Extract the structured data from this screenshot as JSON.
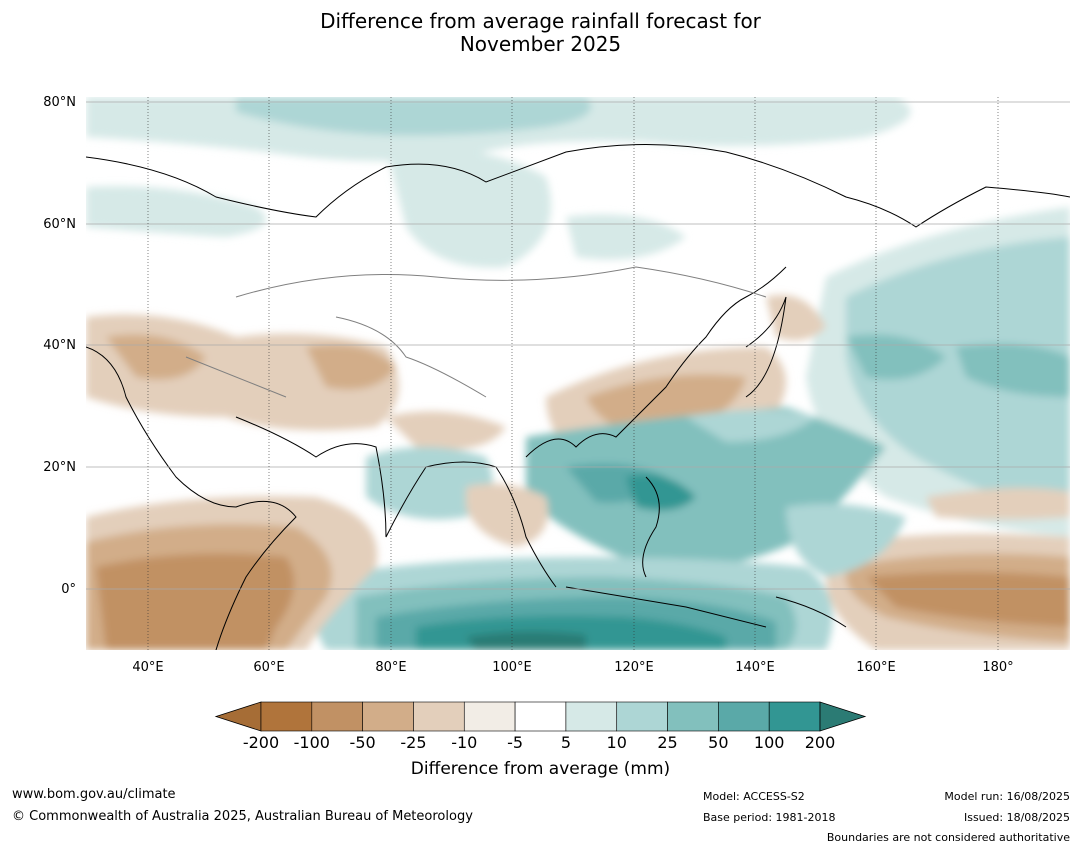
{
  "title_line1": "Difference from average rainfall forecast for",
  "title_line2": "November 2025",
  "map": {
    "lat_labels": [
      "80°N",
      "60°N",
      "40°N",
      "20°N",
      "0°"
    ],
    "lon_labels": [
      "40°E",
      "60°E",
      "80°E",
      "100°E",
      "120°E",
      "140°E",
      "160°E",
      "180°"
    ]
  },
  "legend": {
    "ticks": [
      "-200",
      "-100",
      "-50",
      "-25",
      "-10",
      "-5",
      "5",
      "10",
      "25",
      "50",
      "100",
      "200"
    ],
    "colors": [
      "#a66d36",
      "#b0743b",
      "#c19164",
      "#d2ad89",
      "#e3cfbb",
      "#f2ede6",
      "#ffffff",
      "#d6e9e7",
      "#add6d5",
      "#82c0bd",
      "#5aa9a8",
      "#329693",
      "#2b7b74"
    ],
    "label": "Difference from average (mm)"
  },
  "footer": {
    "website": "www.bom.gov.au/climate",
    "copyright": "© Commonwealth of Australia 2025, Australian Bureau of Meteorology",
    "model": "Model: ACCESS-S2",
    "base_period": "Base period: 1981-2018",
    "model_run": "Model run: 16/08/2025",
    "issued": "Issued: 18/08/2025",
    "disclaimer": "Boundaries are not considered authoritative"
  }
}
